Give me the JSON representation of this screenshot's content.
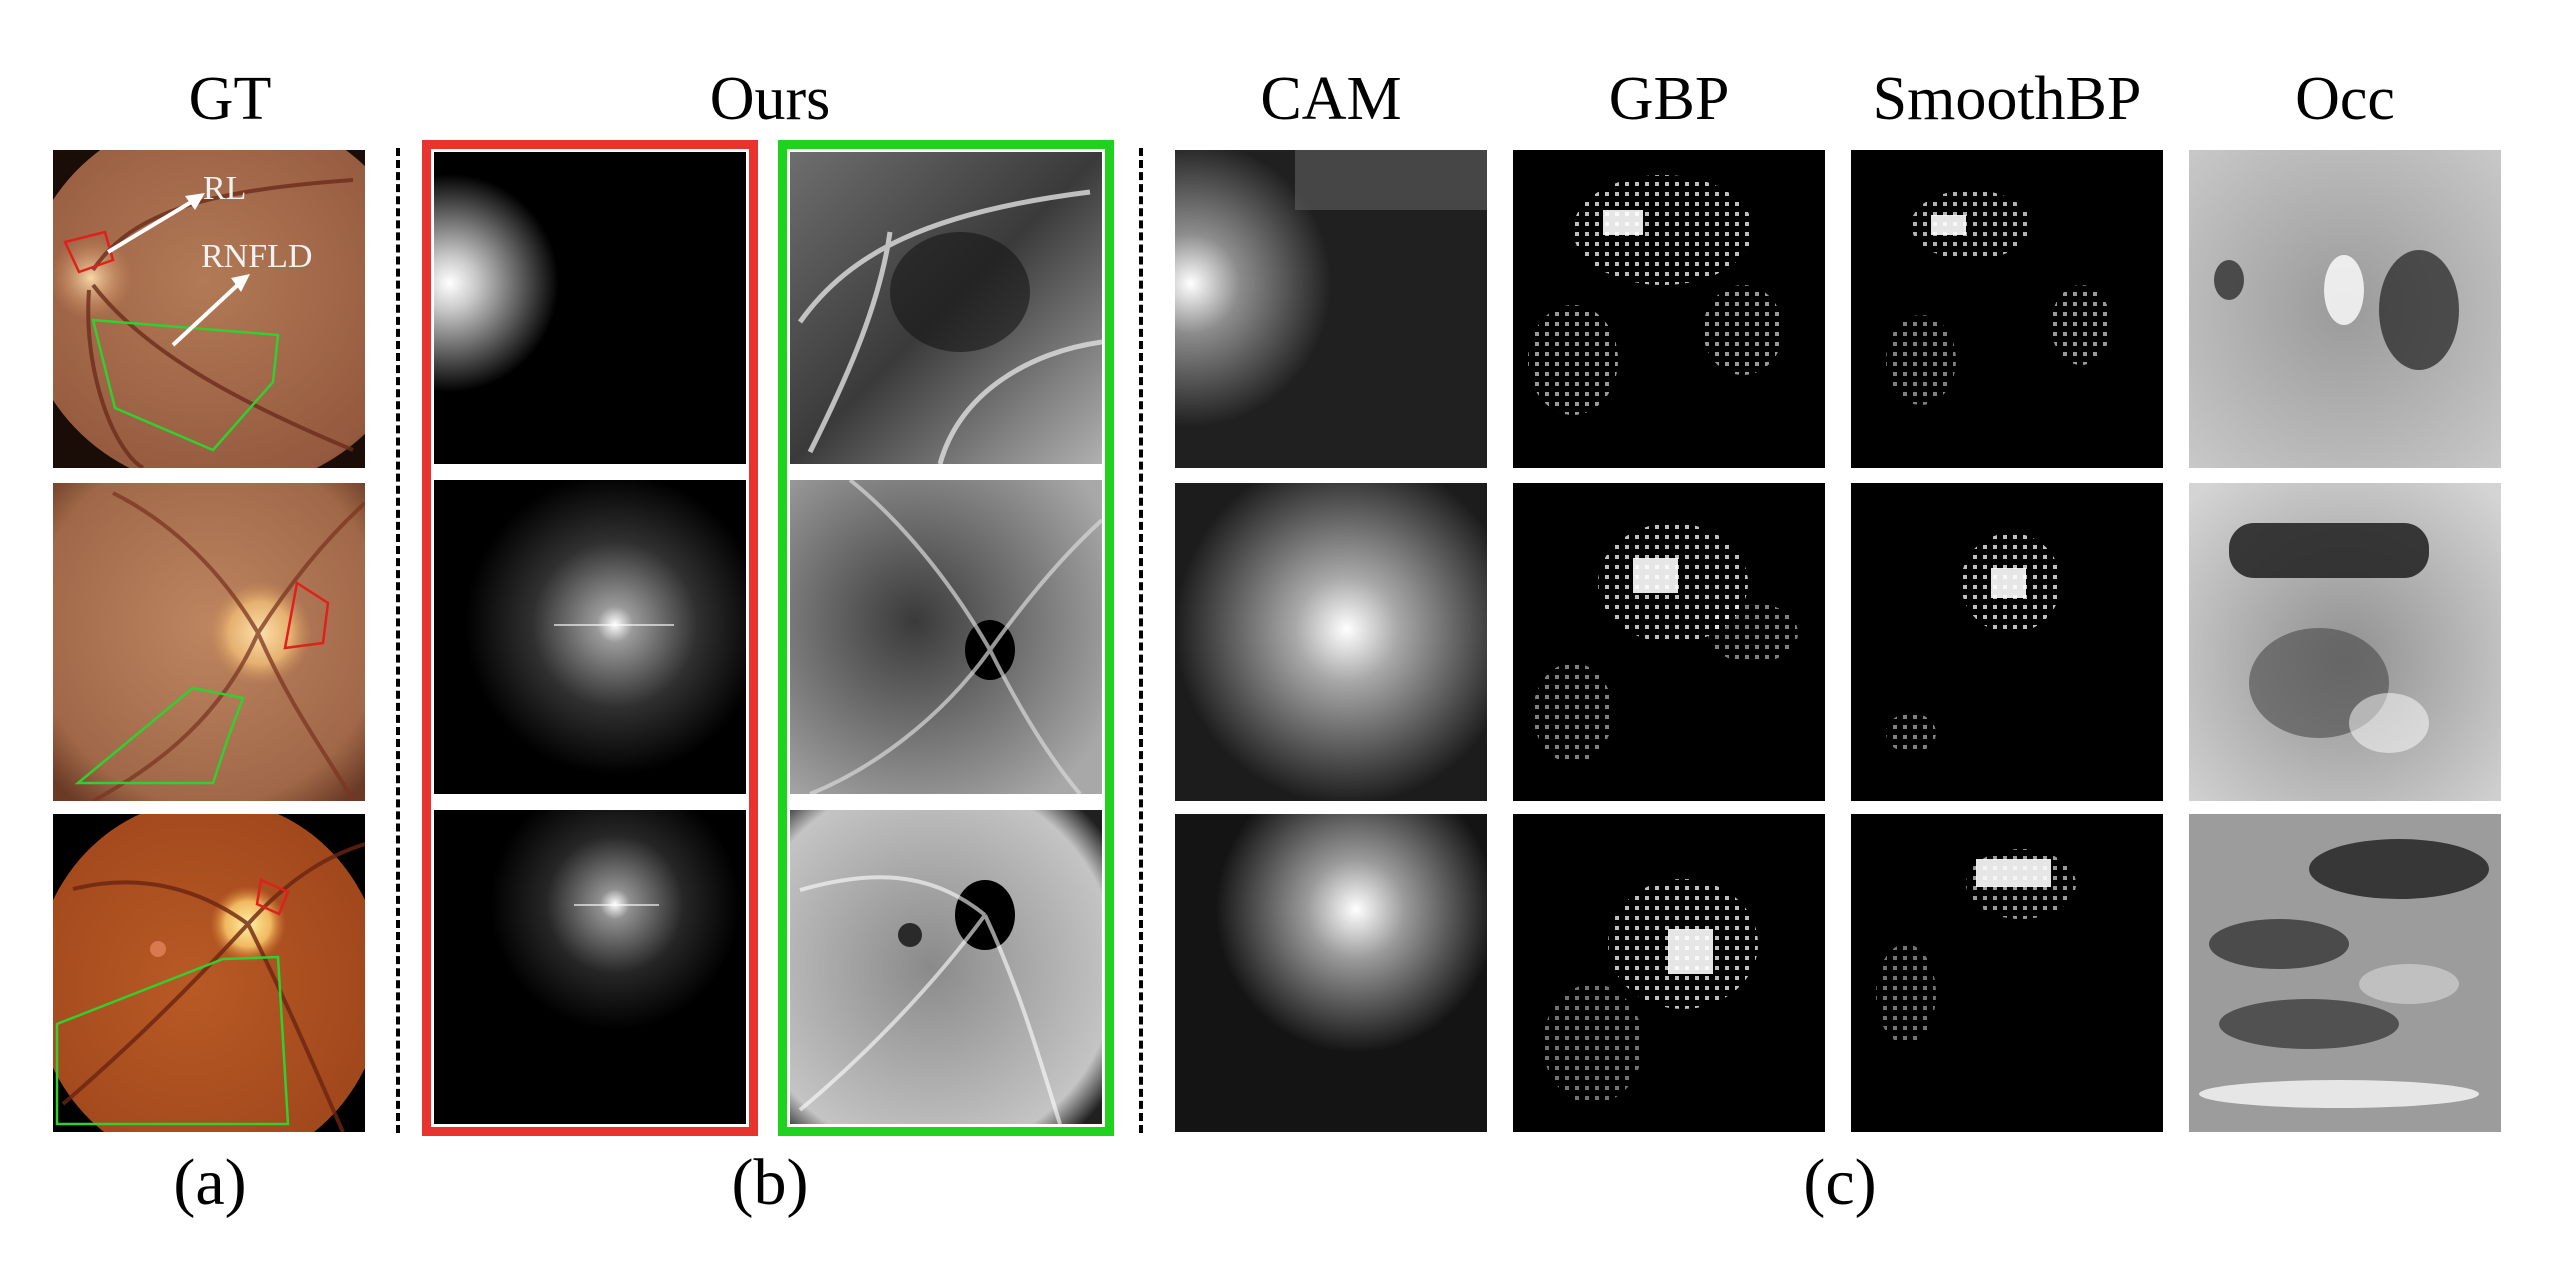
{
  "columns": {
    "gt": "GT",
    "ours": "Ours",
    "cam": "CAM",
    "gbp": "GBP",
    "smoothbp": "SmoothBP",
    "occ": "Occ"
  },
  "panels": {
    "a": "(a)",
    "b": "(b)",
    "c": "(c)"
  },
  "annotations": {
    "rl": "RL",
    "rnfld": "RNFLD"
  },
  "colors": {
    "red_frame": "#e8332f",
    "green_frame": "#1ed21e",
    "fundus": "#a4664a"
  }
}
